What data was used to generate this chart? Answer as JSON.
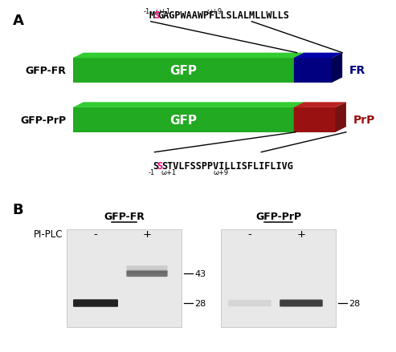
{
  "panel_A_label": "A",
  "panel_B_label": "B",
  "gfp_fr_label": "GFP-FR",
  "gfp_prp_label": "GFP-PrP",
  "gfp_text": "GFP",
  "fr_text": "FR",
  "prp_text": "PrP",
  "top_annotation_minus1": "-1",
  "top_annotation_omega1": "ω+1",
  "top_annotation_omega9": "ω+9",
  "bot_annotation_minus1": "-1",
  "bot_annotation_omega1": "ω+1",
  "bot_annotation_omega9": "ω+9",
  "gfp_color": "#22aa22",
  "gfp_top_color": "#33cc33",
  "gfp_side_color": "#118811",
  "fr_color": "#000080",
  "fr_top_color": "#0000aa",
  "fr_side_color": "#000055",
  "prp_color": "#991111",
  "prp_top_color": "#bb2222",
  "prp_side_color": "#771111",
  "pi_plc_label": "PI-PLC",
  "gfp_fr_gel_label": "GFP-FR",
  "gfp_prp_gel_label": "GFP-PrP",
  "minus_label": "-",
  "plus_label": "+",
  "band_43": "43",
  "band_28": "28",
  "bg_color": "#ffffff"
}
